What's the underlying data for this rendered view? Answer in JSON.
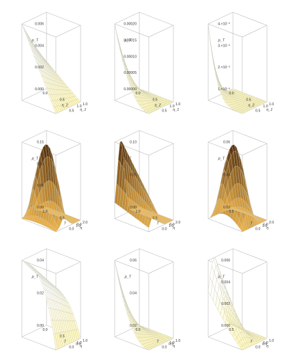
{
  "chart_data": [
    {
      "type": "surface",
      "panel": "row1-col1",
      "zlabel": "p_T",
      "xlabel": "η_2",
      "ylabel": "η_1",
      "zticks": [
        "0.000",
        "0.002",
        "0.004",
        "0.006"
      ],
      "xticks": [
        "0.0",
        "0.5",
        "1.0"
      ],
      "yticks": [
        "0.5",
        "1.0"
      ],
      "zlim": [
        0,
        0.006
      ],
      "shape": "wedge",
      "peak": 0.006
    },
    {
      "type": "surface",
      "panel": "row1-col2",
      "zlabel": "p_T",
      "xlabel": "η_2",
      "ylabel": "η_1",
      "zticks": [
        "0.00000",
        "0.00005",
        "0.00010",
        "0.00015",
        "0.00020"
      ],
      "xticks": [
        "0.0",
        "0.5",
        "1.0"
      ],
      "yticks": [
        "0.5",
        "1.0"
      ],
      "zlim": [
        0,
        0.0002
      ],
      "shape": "corner-spike",
      "peak": 0.0002
    },
    {
      "type": "surface",
      "panel": "row1-col3",
      "zlabel": "p_T",
      "xlabel": "η_2",
      "ylabel": "η_1",
      "zticks": [
        "1.×10⁻⁶",
        "2.×10⁻⁶",
        "3.×10⁻⁶",
        "4.×10⁻⁶"
      ],
      "xticks": [
        "0.0",
        "0.5",
        "1.0"
      ],
      "yticks": [
        "0.5",
        "1.0"
      ],
      "zlim": [
        0,
        4e-06
      ],
      "shape": "sharp-spike",
      "peak": 4e-06
    },
    {
      "type": "surface",
      "panel": "row2-col1",
      "zlabel": "p_T",
      "xlabel": "T",
      "ylabel": "η",
      "zticks": [
        "0.00",
        "0.05",
        "0.10",
        "0.15"
      ],
      "xticks": [
        "1.0",
        "0.5",
        "0.0"
      ],
      "yticks": [
        "0.0",
        "1.0",
        "2.0"
      ],
      "zlim": [
        0,
        0.15
      ],
      "shape": "ridge",
      "peak": 0.15
    },
    {
      "type": "surface",
      "panel": "row2-col2",
      "zlabel": "p_T",
      "xlabel": "T",
      "ylabel": "η",
      "zticks": [
        "0.00",
        "0.05",
        "0.10"
      ],
      "xticks": [
        "1.0",
        "0.5",
        "0.0"
      ],
      "yticks": [
        "0.0",
        "1.0",
        "2.0"
      ],
      "zlim": [
        0,
        0.13
      ],
      "shape": "ridge-edge",
      "peak": 0.13
    },
    {
      "type": "surface",
      "panel": "row2-col3",
      "zlabel": "p_T",
      "xlabel": "T",
      "ylabel": "η",
      "zticks": [
        "0.02",
        "0.04",
        "0.06"
      ],
      "xticks": [
        "0.5",
        "1.0"
      ],
      "yticks": [
        "0.0",
        "1.0",
        "2.0"
      ],
      "zlim": [
        0,
        0.065
      ],
      "shape": "dome",
      "peak": 0.065
    },
    {
      "type": "surface",
      "panel": "row3-col1",
      "zlabel": "p_T",
      "xlabel": "T",
      "ylabel": "η",
      "zticks": [
        "0.00",
        "0.02",
        "0.04"
      ],
      "xticks": [
        "0.0",
        "0.5",
        "1.0"
      ],
      "yticks": [
        "0.0",
        "0.5",
        "1.0"
      ],
      "zlim": [
        0,
        0.05
      ],
      "shape": "plateau",
      "peak": 0.05
    },
    {
      "type": "surface",
      "panel": "row3-col2",
      "zlabel": "p_T",
      "xlabel": "T",
      "ylabel": "η",
      "zticks": [
        "0.02",
        "0.04",
        "0.06"
      ],
      "xticks": [
        "0.5",
        "1.0"
      ],
      "yticks": [
        "0.0",
        "0.5",
        "1.0"
      ],
      "zlim": [
        0,
        0.07
      ],
      "shape": "corner-spike",
      "peak": 0.07
    },
    {
      "type": "surface",
      "panel": "row3-col3",
      "zlabel": "p_T",
      "xlabel": "T",
      "ylabel": "η",
      "zticks": [
        "0.000",
        "0.002",
        "0.004",
        "0.006"
      ],
      "xticks": [
        "0.5",
        "1.0"
      ],
      "yticks": [
        "0.0",
        "0.5",
        "1.0"
      ],
      "zlim": [
        0,
        0.007
      ],
      "shape": "bump",
      "peak": 0.007
    }
  ],
  "colors": {
    "mesh": "#c9c9b4",
    "surface_low": "#fff7b8",
    "surface_high": "#ffffff",
    "dark_low": "#f1b448",
    "dark_high": "#5a3410",
    "box": "#b9b9b9"
  }
}
